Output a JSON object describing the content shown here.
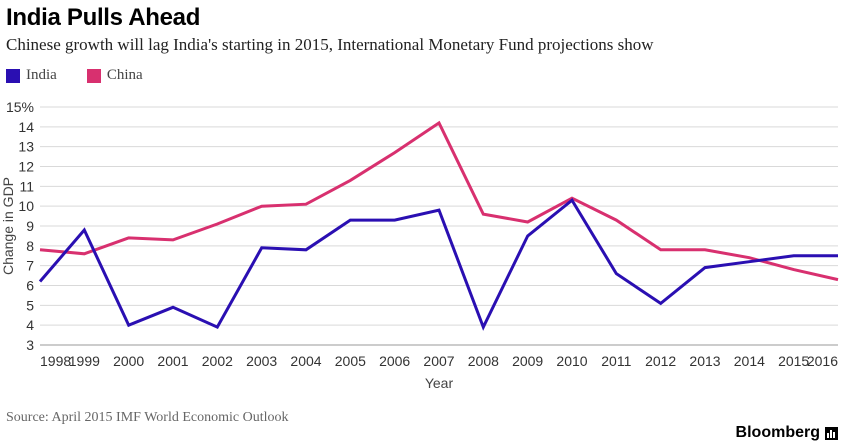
{
  "header": {
    "title": "India Pulls Ahead",
    "subtitle": "Chinese growth will lag India's starting in 2015, International Monetary Fund projections show"
  },
  "footer": {
    "source": "Source: April 2015 IMF World Economic Outlook",
    "brand": "Bloomberg"
  },
  "colors": {
    "india": "#2a0fb2",
    "china": "#d8306f",
    "gridline": "#d9d9d9"
  },
  "chart_data": {
    "type": "line",
    "title": "India Pulls Ahead",
    "xlabel": "Year",
    "ylabel": "Change in GDP",
    "ylim": [
      3,
      15
    ],
    "yticks": [
      "3",
      "4",
      "5",
      "6",
      "7",
      "8",
      "9",
      "10",
      "11",
      "12",
      "13",
      "14",
      "15%"
    ],
    "x": [
      "1998",
      "1999",
      "2000",
      "2001",
      "2002",
      "2003",
      "2004",
      "2005",
      "2006",
      "2007",
      "2008",
      "2009",
      "2010",
      "2011",
      "2012",
      "2013",
      "2014",
      "2015",
      "2016"
    ],
    "series": [
      {
        "name": "India",
        "color": "#2a0fb2",
        "values": [
          6.2,
          8.8,
          4.0,
          4.9,
          3.9,
          7.9,
          7.8,
          9.3,
          9.3,
          9.8,
          3.9,
          8.5,
          10.3,
          6.6,
          5.1,
          6.9,
          7.2,
          7.5,
          7.5
        ]
      },
      {
        "name": "China",
        "color": "#d8306f",
        "values": [
          7.8,
          7.6,
          8.4,
          8.3,
          9.1,
          10.0,
          10.1,
          11.3,
          12.7,
          14.2,
          9.6,
          9.2,
          10.4,
          9.3,
          7.8,
          7.8,
          7.4,
          6.8,
          6.3
        ]
      }
    ],
    "legend": "top-left",
    "grid": true
  }
}
